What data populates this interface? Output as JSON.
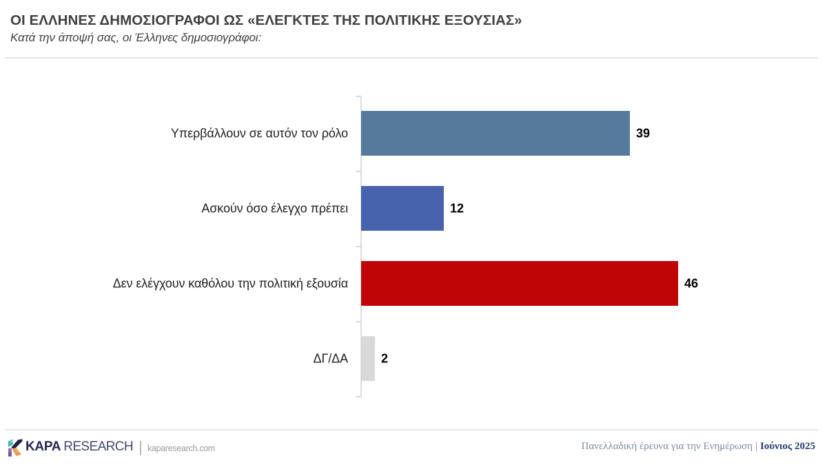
{
  "header": {
    "title": "ΟΙ ΕΛΛΗΝΕΣ ΔΗΜΟΣΙΟΓΡΑΦΟΙ ΩΣ «ΕΛΕΓΚΤΕΣ ΤΗΣ ΠΟΛΙΤΙΚΗΣ ΕΞΟΥΣΙΑΣ»",
    "subtitle": "Κατά την άποψή σας, οι Έλληνες δημοσιογράφοι:"
  },
  "chart_data": {
    "type": "bar",
    "orientation": "horizontal",
    "title": "ΟΙ ΕΛΛΗΝΕΣ ΔΗΜΟΣΙΟΓΡΑΦΟΙ ΩΣ «ΕΛΕΓΚΤΕΣ ΤΗΣ ΠΟΛΙΤΙΚΗΣ ΕΞΟΥΣΙΑΣ»",
    "subtitle": "Κατά την άποψή σας, οι Έλληνες δημοσιογράφοι:",
    "categories": [
      "Υπερβάλλουν σε αυτόν τον ρόλο",
      "Ασκούν όσο έλεγχο πρέπει",
      "Δεν ελέγχουν καθόλου την πολιτική εξουσία",
      "ΔΓ/ΔΑ"
    ],
    "values": [
      39,
      12,
      46,
      2
    ],
    "bar_colors": [
      "#567a9b",
      "#4763ae",
      "#c00505",
      "#d9d9d9"
    ],
    "data_labels": [
      39,
      12,
      46,
      2
    ],
    "xlim": [
      0,
      50
    ],
    "gridlines": false,
    "legend": "none",
    "axis_color": "#dcdcdc",
    "label_color": "#1f1f1f",
    "value_label_color": "#000000"
  },
  "footer": {
    "brand": {
      "name_bold": "KAPA",
      "name_light": "RESEARCH",
      "website": "kaparesearch.com"
    },
    "logo_colors": {
      "teal": "#3db9b4",
      "light_blue": "#8ed6de",
      "navy": "#1f2346",
      "purple": "#9a67b3",
      "purple_dark": "#7c4f9a",
      "orange": "#ea9a45",
      "orange_light": "#f4bc72"
    },
    "note_survey": "Πανελλαδική έρευνα για την Ενημέρωση",
    "note_separator": "|",
    "note_date": "Ιούνιος 2025"
  }
}
